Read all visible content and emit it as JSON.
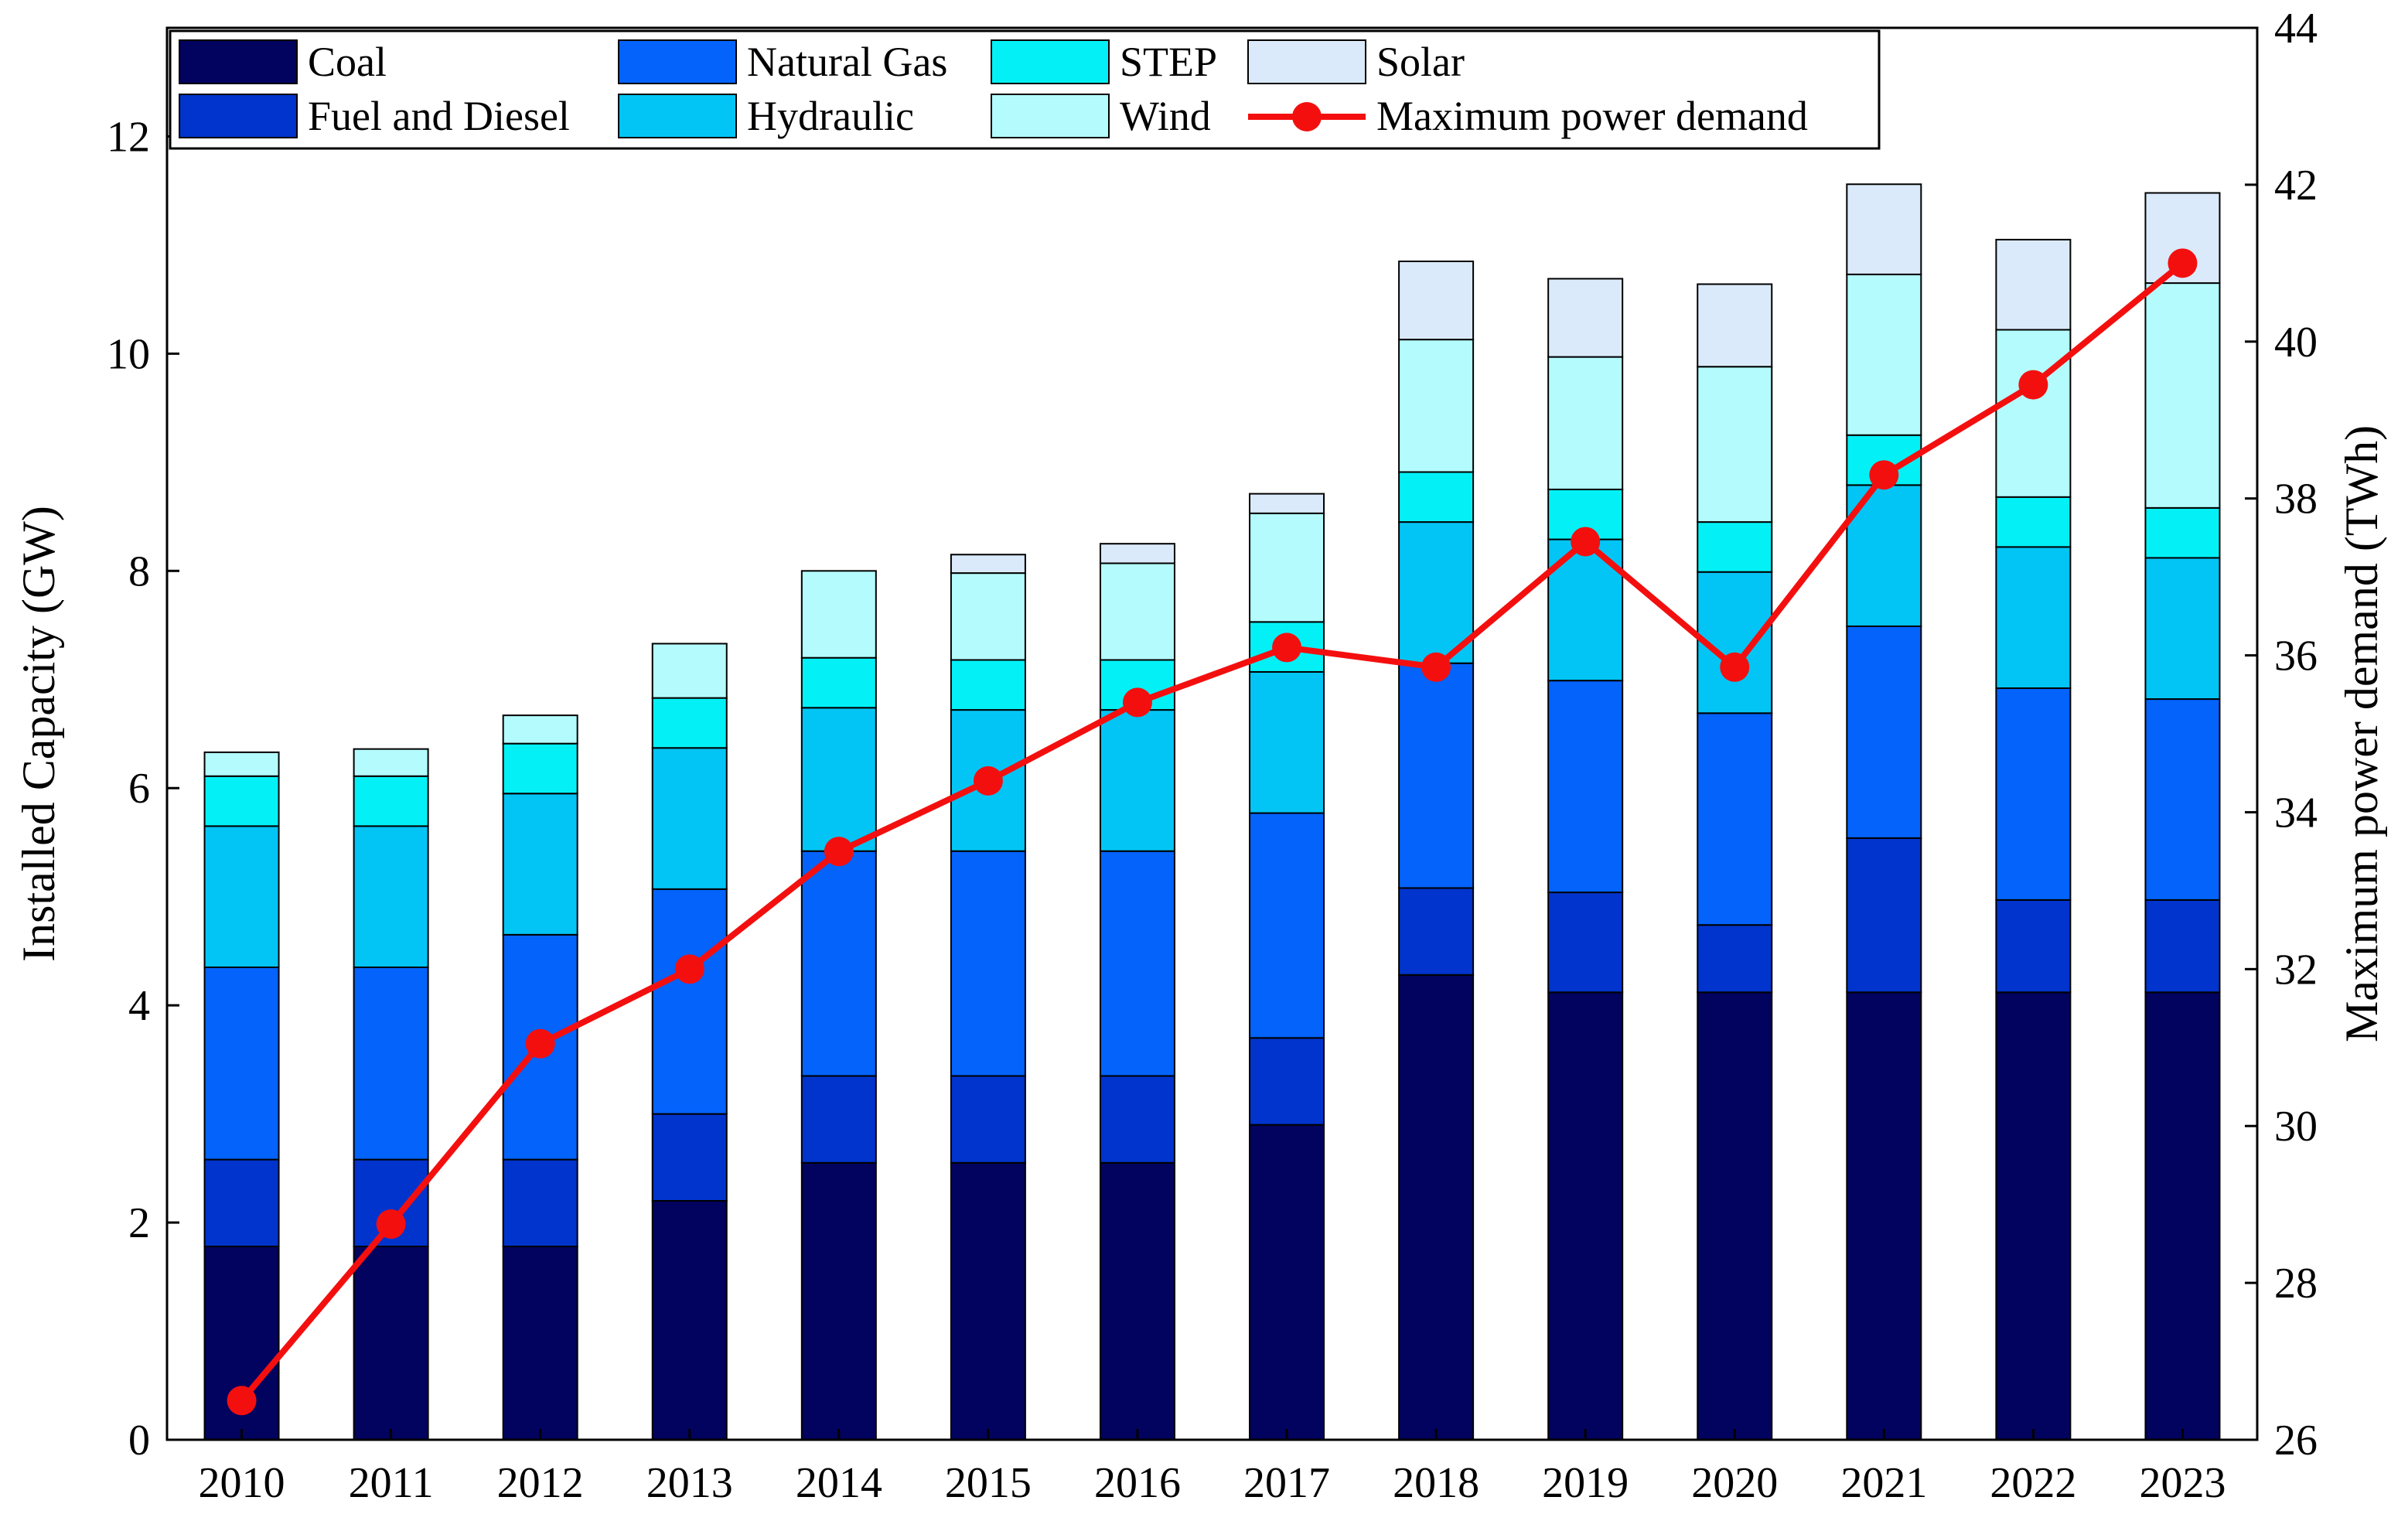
{
  "chart_data": {
    "type": "bar",
    "stacked": true,
    "title": "",
    "xlabel": "",
    "ylabel": "Installed Capacity (GW)",
    "y2label": "Maximum power demand (TWh)",
    "ylim": [
      0,
      13
    ],
    "y2lim": [
      26,
      44
    ],
    "yticks": [
      "0",
      "2",
      "4",
      "6",
      "8",
      "10",
      "12"
    ],
    "y2ticks": [
      "26",
      "28",
      "30",
      "32",
      "34",
      "36",
      "38",
      "40",
      "42",
      "44"
    ],
    "legend_position": "top-left",
    "categories": [
      "2010",
      "2011",
      "2012",
      "2013",
      "2014",
      "2015",
      "2016",
      "2017",
      "2018",
      "2019",
      "2020",
      "2021",
      "2022",
      "2023"
    ],
    "series": [
      {
        "name": "Coal",
        "color": "#02025f",
        "values": [
          1.78,
          1.78,
          1.78,
          2.2,
          2.55,
          2.55,
          2.55,
          2.9,
          4.28,
          4.12,
          4.12,
          4.12,
          4.12,
          4.12
        ]
      },
      {
        "name": "Fuel and Diesel",
        "color": "#0034cc",
        "values": [
          0.8,
          0.8,
          0.8,
          0.8,
          0.8,
          0.8,
          0.8,
          0.8,
          0.8,
          0.92,
          0.62,
          1.42,
          0.85,
          0.85
        ]
      },
      {
        "name": "Natural Gas",
        "color": "#0363fb",
        "values": [
          1.77,
          1.77,
          2.07,
          2.07,
          2.07,
          2.07,
          2.07,
          2.07,
          2.07,
          1.95,
          1.95,
          1.95,
          1.95,
          1.85
        ]
      },
      {
        "name": "Hydraulic",
        "color": "#02c5f5",
        "values": [
          1.3,
          1.3,
          1.3,
          1.3,
          1.32,
          1.3,
          1.3,
          1.3,
          1.3,
          1.3,
          1.3,
          1.3,
          1.3,
          1.3
        ]
      },
      {
        "name": "STEP",
        "color": "#03f1f6",
        "values": [
          0.46,
          0.46,
          0.46,
          0.46,
          0.46,
          0.46,
          0.46,
          0.46,
          0.46,
          0.46,
          0.46,
          0.46,
          0.46,
          0.46
        ]
      },
      {
        "name": "Wind",
        "color": "#b4fbfd",
        "values": [
          0.22,
          0.25,
          0.26,
          0.5,
          0.8,
          0.8,
          0.89,
          1.0,
          1.22,
          1.22,
          1.43,
          1.48,
          1.54,
          2.07
        ]
      },
      {
        "name": "Solar",
        "color": "#daeafa",
        "values": [
          0,
          0,
          0,
          0,
          0,
          0.17,
          0.18,
          0.18,
          0.72,
          0.72,
          0.76,
          0.83,
          0.83,
          0.83
        ]
      }
    ],
    "line_series": {
      "name": "Maximum power demand",
      "color": "#f40f0f",
      "axis": "right",
      "values": [
        26.5,
        28.75,
        31.05,
        32.0,
        33.5,
        34.4,
        35.4,
        36.1,
        35.85,
        37.45,
        35.85,
        38.3,
        39.45,
        41.0
      ]
    }
  }
}
